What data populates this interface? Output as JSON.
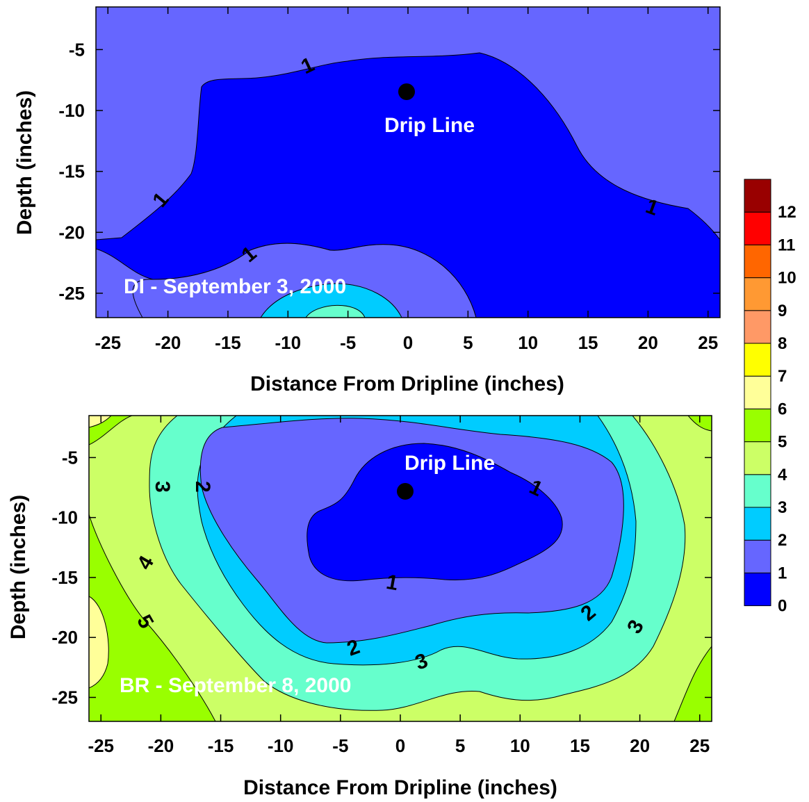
{
  "chart_data": [
    {
      "type": "contour",
      "title": "DI - September 3, 2000",
      "xlabel": "Distance From Dripline (inches)",
      "ylabel": "Depth (inches)",
      "xlim": [
        -26,
        26
      ],
      "ylim": [
        -27,
        -1.5
      ],
      "xticks": [
        -25,
        -20,
        -15,
        -10,
        -5,
        0,
        5,
        10,
        15,
        20,
        25
      ],
      "yticks": [
        -5,
        -10,
        -15,
        -20,
        -25
      ],
      "marker": {
        "label": "Drip Line",
        "x": 0,
        "y": -8
      },
      "contour_levels_labeled": [
        "1",
        "1",
        "1",
        "1"
      ],
      "regions": [
        {
          "range": "1-2",
          "color": "#6666ff",
          "description": "background"
        },
        {
          "range": "0-1",
          "color": "#0000ff",
          "description": "central zone around drip line"
        },
        {
          "range": "1-2",
          "color": "#6666ff",
          "description": "lower pocket near x=-5"
        },
        {
          "range": "2-3",
          "color": "#00ccff",
          "description": "bottom near x=-6"
        },
        {
          "range": "3-4",
          "color": "#66ffcc",
          "description": "bottom near x=-6"
        }
      ]
    },
    {
      "type": "contour",
      "title": "BR - September 8, 2000",
      "xlabel": "Distance From Dripline (inches)",
      "ylabel": "Depth (inches)",
      "xlim": [
        -26,
        26
      ],
      "ylim": [
        -27,
        -1.5
      ],
      "xticks": [
        -25,
        -20,
        -15,
        -10,
        -5,
        0,
        5,
        10,
        15,
        20,
        25
      ],
      "yticks": [
        -5,
        -10,
        -15,
        -20,
        -25
      ],
      "marker": {
        "label": "Drip Line",
        "x": 0.5,
        "y": -8
      },
      "contour_levels_labeled": [
        "1",
        "1",
        "2",
        "2",
        "2",
        "3",
        "3",
        "3",
        "4",
        "5"
      ],
      "regions": [
        {
          "range": "0-1",
          "color": "#0000ff"
        },
        {
          "range": "1-2",
          "color": "#6666ff"
        },
        {
          "range": "2-3",
          "color": "#00ccff"
        },
        {
          "range": "3-4",
          "color": "#66ffcc"
        },
        {
          "range": "4-5",
          "color": "#ccff66"
        },
        {
          "range": "5-6",
          "color": "#99ff00"
        },
        {
          "range": "6-7",
          "color": "#ffff99"
        }
      ]
    }
  ],
  "colorbar": {
    "labels": [
      "0",
      "1",
      "2",
      "3",
      "4",
      "5",
      "6",
      "7",
      "8",
      "9",
      "10",
      "11",
      "12"
    ],
    "colors": [
      "#0000ff",
      "#6666ff",
      "#00ccff",
      "#66ffcc",
      "#ccff66",
      "#99ff00",
      "#ffff99",
      "#ffff00",
      "#ff9966",
      "#ff9933",
      "#ff6600",
      "#ff0000",
      "#990000"
    ]
  },
  "ui": {
    "top_title": "DI - September 3, 2000",
    "top_marker_label": "Drip Line",
    "bottom_title": "BR - September 8, 2000",
    "bottom_marker_label": "Drip Line",
    "xlabel": "Distance From Dripline (inches)",
    "ylabel": "Depth (inches)"
  }
}
